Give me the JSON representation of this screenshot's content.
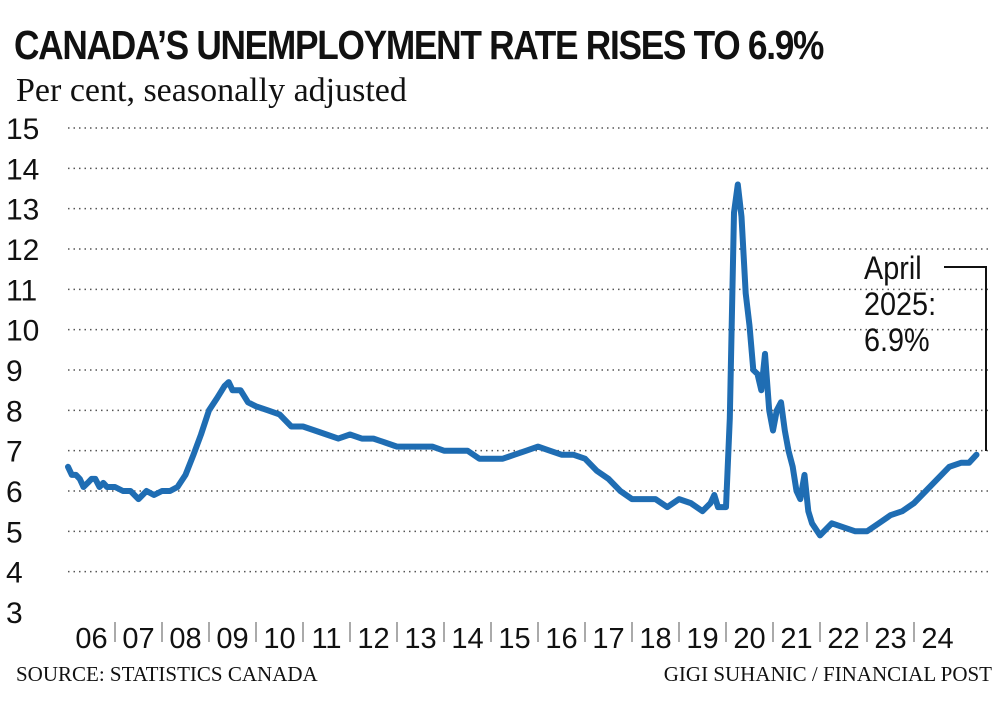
{
  "title": "CANADA’S UNEMPLOYMENT RATE RISES TO 6.9%",
  "subtitle": "Per cent, seasonally adjusted",
  "source": "SOURCE: STATISTICS CANADA",
  "credit": "GIGI SUHANIC / FINANCIAL POST",
  "annotation": {
    "line1": "April",
    "line2": "2025:",
    "line3": "6.9%"
  },
  "colors": {
    "line": "#1f6db3",
    "text": "#111111",
    "grid": "#555555"
  },
  "chart_data": {
    "type": "line",
    "title": "CANADA’S UNEMPLOYMENT RATE RISES TO 6.9%",
    "subtitle": "Per cent, seasonally adjusted",
    "xlabel": "",
    "ylabel": "Per cent",
    "ylim": [
      3,
      15
    ],
    "xlim": [
      2006.0,
      2025.33
    ],
    "grid": "horizontal dotted",
    "y_ticks": [
      15,
      14,
      13,
      12,
      11,
      10,
      9,
      8,
      7,
      6,
      5,
      4,
      3
    ],
    "x_ticks": [
      "06",
      "07",
      "08",
      "09",
      "10",
      "11",
      "12",
      "13",
      "14",
      "15",
      "16",
      "17",
      "18",
      "19",
      "20",
      "21",
      "22",
      "23",
      "24"
    ],
    "series": [
      {
        "name": "Unemployment rate",
        "x": [
          2006.0,
          2006.08,
          2006.17,
          2006.25,
          2006.33,
          2006.42,
          2006.5,
          2006.58,
          2006.67,
          2006.75,
          2006.83,
          2007.0,
          2007.17,
          2007.33,
          2007.5,
          2007.67,
          2007.83,
          2008.0,
          2008.17,
          2008.33,
          2008.5,
          2008.67,
          2008.83,
          2009.0,
          2009.17,
          2009.33,
          2009.42,
          2009.5,
          2009.67,
          2009.83,
          2010.0,
          2010.25,
          2010.5,
          2010.75,
          2011.0,
          2011.25,
          2011.5,
          2011.75,
          2012.0,
          2012.25,
          2012.5,
          2012.75,
          2013.0,
          2013.25,
          2013.5,
          2013.75,
          2014.0,
          2014.25,
          2014.5,
          2014.75,
          2015.0,
          2015.25,
          2015.5,
          2015.75,
          2016.0,
          2016.25,
          2016.5,
          2016.75,
          2017.0,
          2017.25,
          2017.5,
          2017.75,
          2018.0,
          2018.25,
          2018.5,
          2018.75,
          2019.0,
          2019.25,
          2019.5,
          2019.67,
          2019.75,
          2019.83,
          2020.0,
          2020.08,
          2020.17,
          2020.25,
          2020.33,
          2020.42,
          2020.5,
          2020.58,
          2020.67,
          2020.75,
          2020.83,
          2020.92,
          2021.0,
          2021.08,
          2021.17,
          2021.25,
          2021.33,
          2021.42,
          2021.5,
          2021.58,
          2021.67,
          2021.75,
          2021.83,
          2022.0,
          2022.25,
          2022.5,
          2022.75,
          2023.0,
          2023.25,
          2023.5,
          2023.75,
          2024.0,
          2024.25,
          2024.5,
          2024.75,
          2025.0,
          2025.17,
          2025.33
        ],
        "values": [
          6.6,
          6.4,
          6.4,
          6.3,
          6.1,
          6.2,
          6.3,
          6.3,
          6.1,
          6.2,
          6.1,
          6.1,
          6.0,
          6.0,
          5.8,
          6.0,
          5.9,
          6.0,
          6.0,
          6.1,
          6.4,
          6.9,
          7.4,
          8.0,
          8.3,
          8.6,
          8.7,
          8.5,
          8.5,
          8.2,
          8.1,
          8.0,
          7.9,
          7.6,
          7.6,
          7.5,
          7.4,
          7.3,
          7.4,
          7.3,
          7.3,
          7.2,
          7.1,
          7.1,
          7.1,
          7.1,
          7.0,
          7.0,
          7.0,
          6.8,
          6.8,
          6.8,
          6.9,
          7.0,
          7.1,
          7.0,
          6.9,
          6.9,
          6.8,
          6.5,
          6.3,
          6.0,
          5.8,
          5.8,
          5.8,
          5.6,
          5.8,
          5.7,
          5.5,
          5.7,
          5.9,
          5.6,
          5.6,
          7.8,
          12.9,
          13.6,
          12.8,
          10.9,
          10.1,
          9.0,
          8.9,
          8.5,
          9.4,
          8.0,
          7.5,
          8.0,
          8.2,
          7.5,
          7.0,
          6.6,
          6.0,
          5.8,
          6.4,
          5.5,
          5.2,
          4.9,
          5.2,
          5.1,
          5.0,
          5.0,
          5.2,
          5.4,
          5.5,
          5.7,
          6.0,
          6.3,
          6.6,
          6.7,
          6.7,
          6.9
        ]
      }
    ]
  }
}
